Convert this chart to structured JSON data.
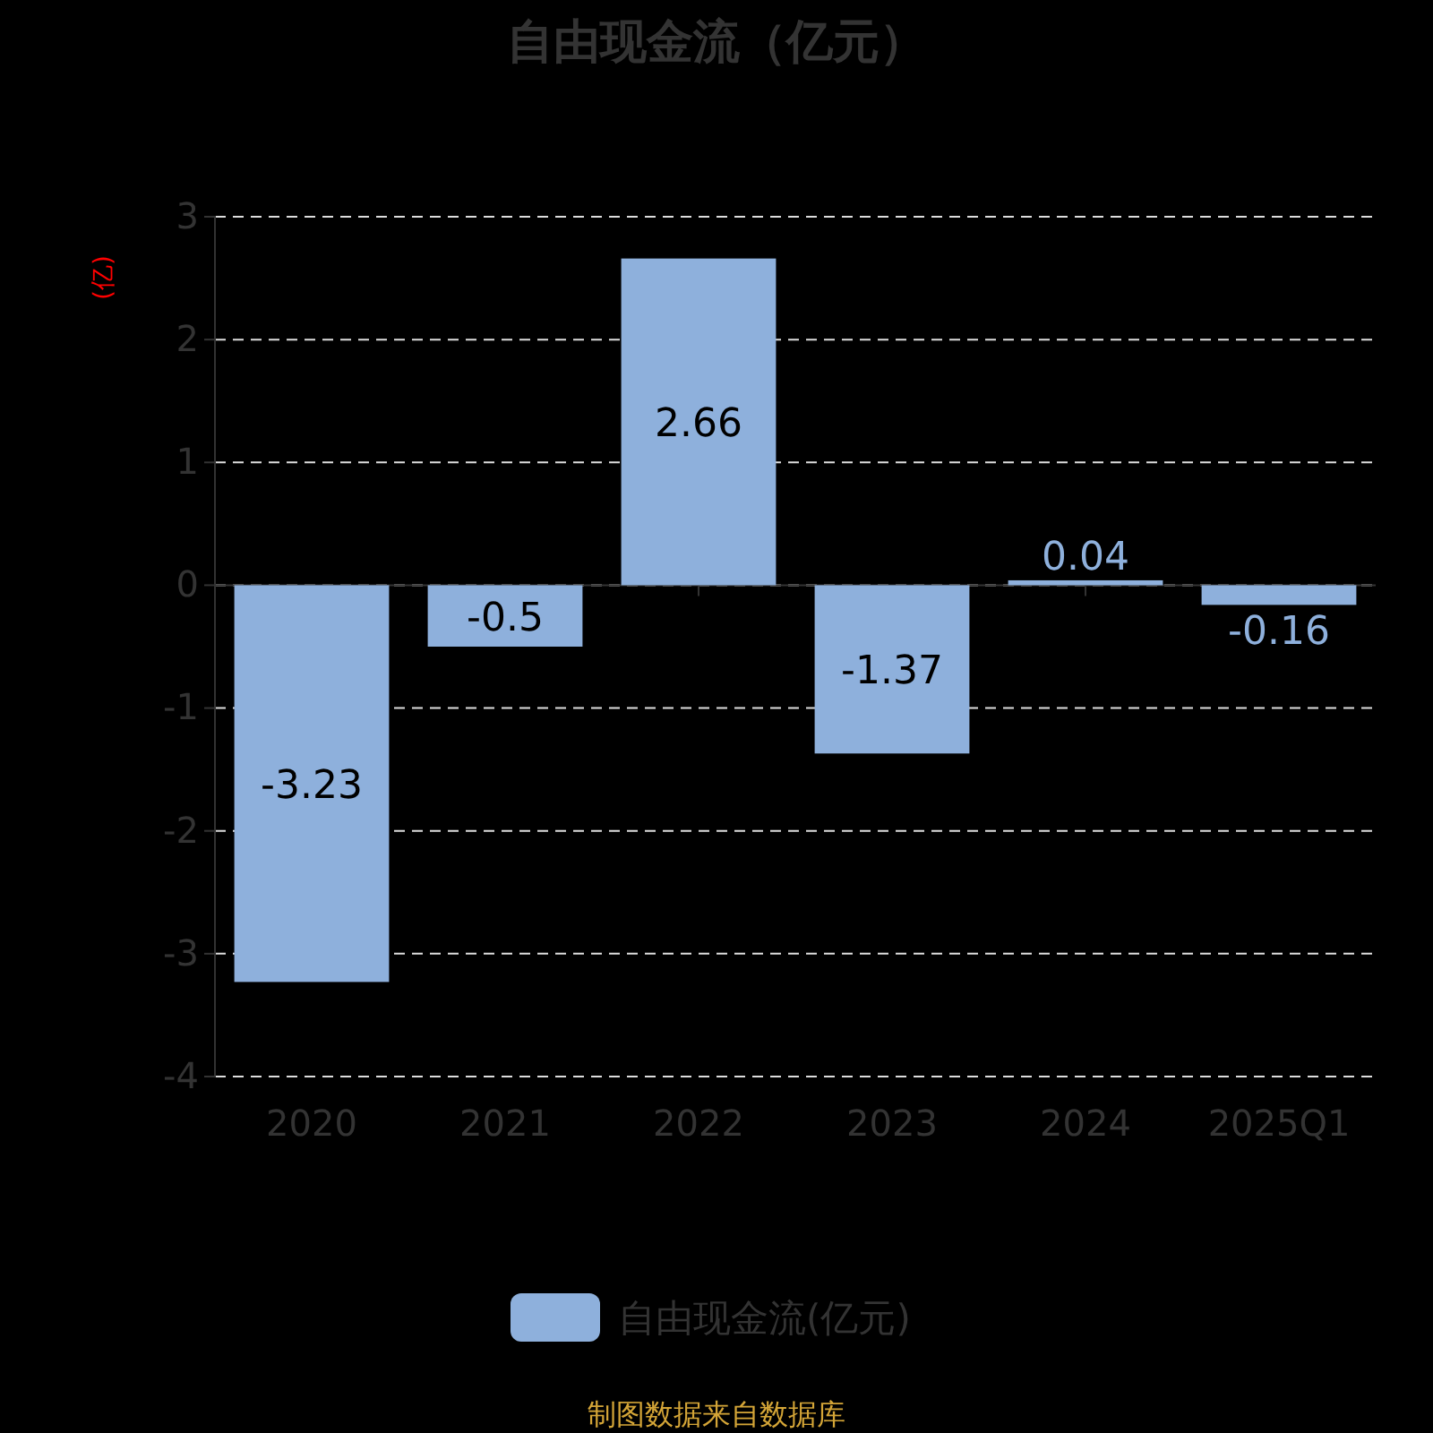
{
  "chart_data": {
    "type": "bar",
    "title": "自由现金流（亿元）",
    "ylabel": "(亿)",
    "categories": [
      "2020",
      "2021",
      "2022",
      "2023",
      "2024",
      "2025Q1"
    ],
    "series": [
      {
        "name": "自由现金流(亿元)",
        "color": "#8eb0dc",
        "values": [
          -3.23,
          -0.5,
          2.66,
          -1.37,
          0.04,
          -0.16
        ]
      }
    ],
    "ylim": [
      -4,
      3
    ],
    "yticks": [
      -4,
      -3,
      -2,
      -1,
      0,
      1,
      2,
      3
    ],
    "grid": "y",
    "legend": "bottom",
    "data_labels": true,
    "annotations": [
      "制图数据来自数据库"
    ]
  }
}
